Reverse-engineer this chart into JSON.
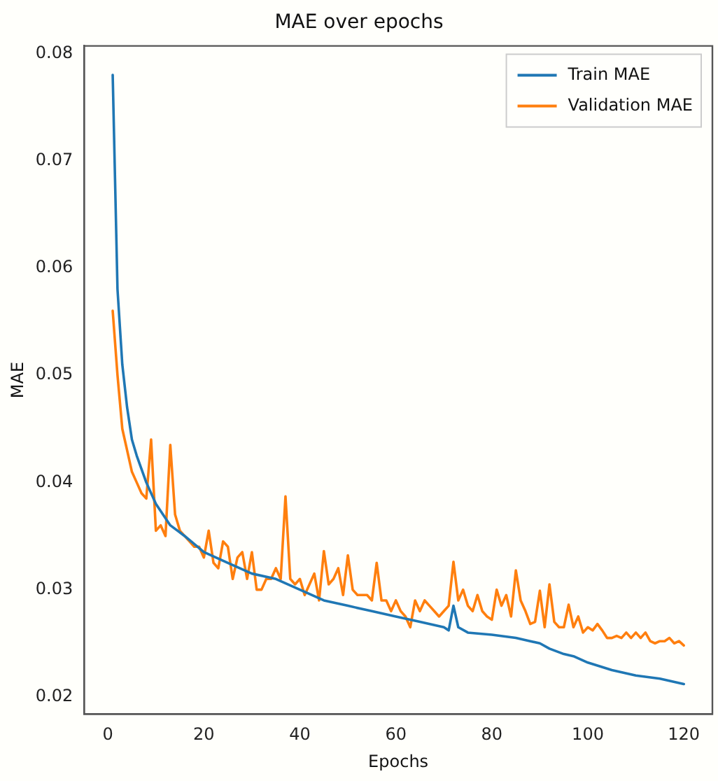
{
  "chart_data": {
    "type": "line",
    "title": "MAE over epochs",
    "xlabel": "Epochs",
    "ylabel": "MAE",
    "xlim": [
      -4.95,
      125.95
    ],
    "xticks": [
      0,
      20,
      40,
      60,
      80,
      100,
      120
    ],
    "ylim": [
      0.0184,
      0.0807
    ],
    "yticks": [
      0.02,
      0.03,
      0.04,
      0.05,
      0.06,
      0.07,
      0.08
    ],
    "grid": false,
    "legend": "top right",
    "marker": "none",
    "line_style": "solid",
    "series": [
      {
        "name": "Train MAE",
        "color": "#1f77b4",
        "x": [
          1,
          2,
          3,
          4,
          5,
          6,
          8,
          10,
          13,
          16,
          20,
          25,
          30,
          35,
          40,
          45,
          50,
          55,
          60,
          65,
          70,
          71,
          72,
          73,
          75,
          80,
          85,
          88,
          90,
          92,
          95,
          97,
          100,
          105,
          110,
          115,
          120
        ],
        "values": [
          0.078,
          0.058,
          0.051,
          0.047,
          0.044,
          0.0425,
          0.04,
          0.038,
          0.036,
          0.035,
          0.0335,
          0.0325,
          0.0315,
          0.031,
          0.03,
          0.029,
          0.0285,
          0.028,
          0.0275,
          0.027,
          0.0265,
          0.0262,
          0.0285,
          0.0265,
          0.026,
          0.0258,
          0.0255,
          0.0252,
          0.025,
          0.0245,
          0.024,
          0.0238,
          0.0232,
          0.0225,
          0.022,
          0.0217,
          0.0212
        ]
      },
      {
        "name": "Validation MAE",
        "color": "#ff7f0e",
        "x": [
          1,
          2,
          3,
          4,
          5,
          6,
          7,
          8,
          9,
          10,
          11,
          12,
          13,
          14,
          15,
          16,
          17,
          18,
          19,
          20,
          21,
          22,
          23,
          24,
          25,
          26,
          27,
          28,
          29,
          30,
          31,
          32,
          33,
          34,
          35,
          36,
          37,
          38,
          39,
          40,
          41,
          42,
          43,
          44,
          45,
          46,
          47,
          48,
          49,
          50,
          51,
          52,
          53,
          54,
          55,
          56,
          57,
          58,
          59,
          60,
          61,
          62,
          63,
          64,
          65,
          66,
          67,
          68,
          69,
          70,
          71,
          72,
          73,
          74,
          75,
          76,
          77,
          78,
          79,
          80,
          81,
          82,
          83,
          84,
          85,
          86,
          87,
          88,
          89,
          90,
          91,
          92,
          93,
          94,
          95,
          96,
          97,
          98,
          99,
          100,
          101,
          102,
          103,
          104,
          105,
          106,
          107,
          108,
          109,
          110,
          111,
          112,
          113,
          114,
          115,
          116,
          117,
          118,
          119,
          120
        ],
        "values": [
          0.056,
          0.05,
          0.045,
          0.043,
          0.041,
          0.04,
          0.039,
          0.0385,
          0.044,
          0.0355,
          0.036,
          0.035,
          0.0435,
          0.037,
          0.0355,
          0.035,
          0.0345,
          0.034,
          0.034,
          0.033,
          0.0355,
          0.0325,
          0.032,
          0.0345,
          0.034,
          0.031,
          0.033,
          0.0335,
          0.031,
          0.0335,
          0.03,
          0.03,
          0.031,
          0.031,
          0.032,
          0.031,
          0.0387,
          0.031,
          0.0305,
          0.031,
          0.0295,
          0.0305,
          0.0315,
          0.029,
          0.0336,
          0.0305,
          0.031,
          0.032,
          0.0295,
          0.0332,
          0.03,
          0.0295,
          0.0295,
          0.0295,
          0.029,
          0.0325,
          0.029,
          0.029,
          0.028,
          0.029,
          0.028,
          0.0275,
          0.0265,
          0.029,
          0.028,
          0.029,
          0.0285,
          0.028,
          0.0275,
          0.028,
          0.0285,
          0.0326,
          0.029,
          0.03,
          0.0285,
          0.028,
          0.0295,
          0.028,
          0.0275,
          0.0272,
          0.03,
          0.0285,
          0.0295,
          0.0275,
          0.0318,
          0.029,
          0.028,
          0.0268,
          0.027,
          0.0299,
          0.0265,
          0.0305,
          0.027,
          0.0265,
          0.0265,
          0.0286,
          0.0265,
          0.0275,
          0.026,
          0.0265,
          0.0262,
          0.0268,
          0.0262,
          0.0255,
          0.0255,
          0.0257,
          0.0255,
          0.026,
          0.0255,
          0.026,
          0.0255,
          0.026,
          0.0252,
          0.025,
          0.0252,
          0.0252,
          0.0255,
          0.025,
          0.0252,
          0.0248
        ]
      }
    ]
  }
}
